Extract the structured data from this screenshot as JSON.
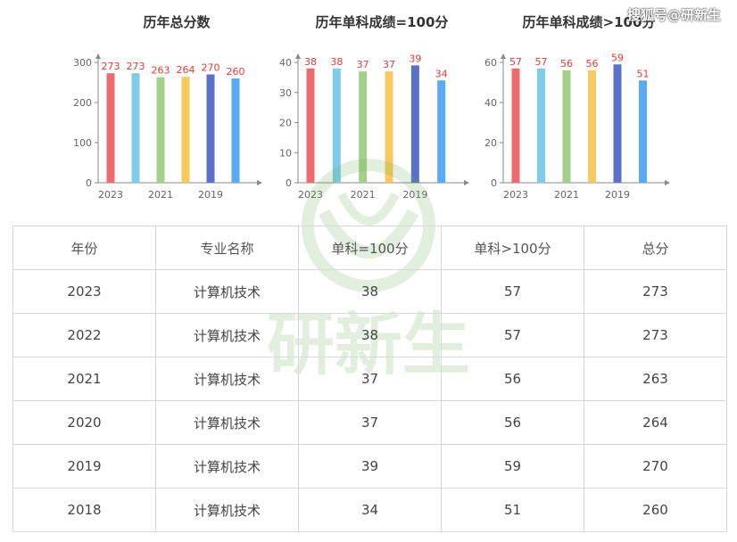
{
  "watermark": "搜狐号@研新生",
  "logo_text": "研新生",
  "colors": [
    "#ef6b6b",
    "#7ecbea",
    "#a3d18a",
    "#f9c960",
    "#5a71c7",
    "#5aaaf5"
  ],
  "chart_data": [
    {
      "type": "bar",
      "title": "历年总分数",
      "categories": [
        "2023",
        "2022",
        "2021",
        "2020",
        "2019",
        "2018"
      ],
      "x_tick_labels": [
        "2023",
        "2021",
        "2019"
      ],
      "values": [
        273,
        273,
        263,
        264,
        270,
        260
      ],
      "y_ticks": [
        0,
        100,
        200,
        300
      ],
      "ylim": [
        0,
        300
      ],
      "xlabel": "",
      "ylabel": ""
    },
    {
      "type": "bar",
      "title": "历年单科成绩=100分",
      "categories": [
        "2023",
        "2022",
        "2021",
        "2020",
        "2019",
        "2018"
      ],
      "x_tick_labels": [
        "2023",
        "2021",
        "2019"
      ],
      "values": [
        38,
        38,
        37,
        37,
        39,
        34
      ],
      "y_ticks": [
        0,
        10,
        20,
        30,
        40
      ],
      "ylim": [
        0,
        40
      ],
      "xlabel": "",
      "ylabel": ""
    },
    {
      "type": "bar",
      "title": "历年单科成绩>100分",
      "categories": [
        "2023",
        "2022",
        "2021",
        "2020",
        "2019",
        "2018"
      ],
      "x_tick_labels": [
        "2023",
        "2021",
        "2019"
      ],
      "values": [
        57,
        57,
        56,
        56,
        59,
        51
      ],
      "y_ticks": [
        0,
        20,
        40,
        60
      ],
      "ylim": [
        0,
        60
      ],
      "xlabel": "",
      "ylabel": ""
    }
  ],
  "table": {
    "headers": [
      "年份",
      "专业名称",
      "单科=100分",
      "单科>100分",
      "总分"
    ],
    "rows": [
      [
        "2023",
        "计算机技术",
        "38",
        "57",
        "273"
      ],
      [
        "2022",
        "计算机技术",
        "38",
        "57",
        "273"
      ],
      [
        "2021",
        "计算机技术",
        "37",
        "56",
        "263"
      ],
      [
        "2020",
        "计算机技术",
        "37",
        "56",
        "264"
      ],
      [
        "2019",
        "计算机技术",
        "39",
        "59",
        "270"
      ],
      [
        "2018",
        "计算机技术",
        "34",
        "51",
        "260"
      ]
    ]
  }
}
